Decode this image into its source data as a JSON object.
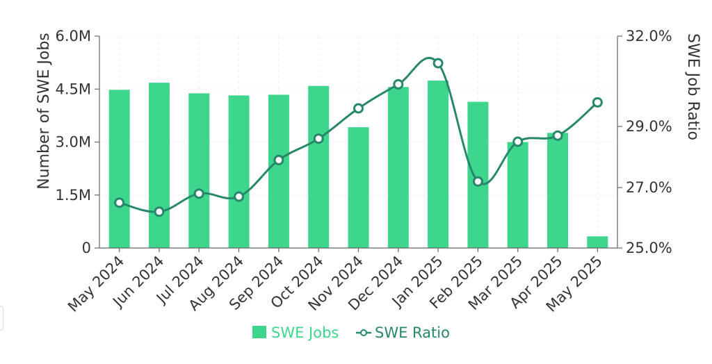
{
  "chart_data": {
    "type": "bar",
    "categories": [
      "May 2024",
      "Jun 2024",
      "Jul 2024",
      "Aug 2024",
      "Sep 2024",
      "Oct 2024",
      "Nov 2024",
      "Dec 2024",
      "Jan 2025",
      "Feb 2025",
      "Mar 2025",
      "Apr 2025",
      "May 2025"
    ],
    "series": [
      {
        "name": "SWE Jobs",
        "type": "bar",
        "axis": "left",
        "color": "#3dd68c",
        "values": [
          4480000,
          4680000,
          4380000,
          4320000,
          4340000,
          4590000,
          3420000,
          4560000,
          4740000,
          4140000,
          3000000,
          3260000,
          330000
        ]
      },
      {
        "name": "SWE Ratio",
        "type": "line",
        "axis": "right",
        "color": "#27876a",
        "values": [
          26.5,
          26.2,
          26.8,
          26.7,
          27.9,
          28.6,
          29.6,
          30.4,
          31.1,
          27.2,
          28.5,
          28.7,
          29.8
        ]
      }
    ],
    "y_left": {
      "label": "Number of SWE Jobs",
      "ylim": [
        0,
        6000000
      ],
      "ticks": [
        "0",
        "1.5M",
        "3.0M",
        "4.5M",
        "6.0M"
      ]
    },
    "y_right": {
      "label": "SWE Job Ratio",
      "ticks": [
        {
          "value": 25.0,
          "label": "25.0%"
        },
        {
          "value": 27.0,
          "label": "27.0%"
        },
        {
          "value": 29.0,
          "label": "29.0%"
        },
        {
          "value": 32.0,
          "label": "32.0%"
        }
      ]
    },
    "grid": true,
    "legend": "bottom-center"
  }
}
